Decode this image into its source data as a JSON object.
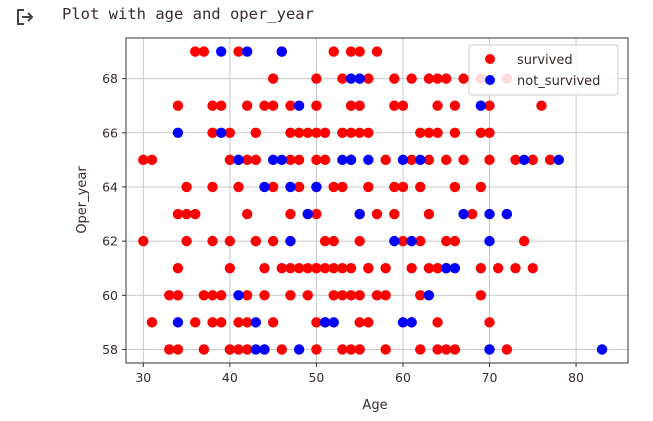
{
  "cell_output": {
    "text": "Plot with age and oper_year",
    "icon": "output-redirect-icon"
  },
  "colors": {
    "survived": "#ff0000",
    "not_survived": "#0000ff",
    "text": "#3b2a2a"
  },
  "chart_data": {
    "type": "scatter",
    "title": "",
    "xlabel": "Age",
    "ylabel": "Oper_year",
    "xlim": [
      28,
      86
    ],
    "ylim": [
      57.5,
      69.5
    ],
    "xticks": [
      30,
      40,
      50,
      60,
      70,
      80
    ],
    "yticks": [
      58,
      60,
      62,
      64,
      66,
      68
    ],
    "grid": true,
    "legend": "top-right",
    "series": [
      {
        "name": "survived",
        "color": "#ff0000",
        "points": [
          [
            36,
            69
          ],
          [
            37,
            69
          ],
          [
            41,
            69
          ],
          [
            46,
            69
          ],
          [
            52,
            69
          ],
          [
            54,
            69
          ],
          [
            55,
            69
          ],
          [
            57,
            69
          ],
          [
            45,
            68
          ],
          [
            50,
            68
          ],
          [
            53,
            68
          ],
          [
            56,
            68
          ],
          [
            59,
            68
          ],
          [
            61,
            68
          ],
          [
            63,
            68
          ],
          [
            64,
            68
          ],
          [
            65,
            68
          ],
          [
            67,
            68
          ],
          [
            69,
            68
          ],
          [
            72,
            68
          ],
          [
            34,
            67
          ],
          [
            38,
            67
          ],
          [
            39,
            67
          ],
          [
            42,
            67
          ],
          [
            44,
            67
          ],
          [
            45,
            67
          ],
          [
            47,
            67
          ],
          [
            50,
            67
          ],
          [
            54,
            67
          ],
          [
            55,
            67
          ],
          [
            59,
            67
          ],
          [
            60,
            67
          ],
          [
            64,
            67
          ],
          [
            66,
            67
          ],
          [
            70,
            67
          ],
          [
            76,
            67
          ],
          [
            38,
            66
          ],
          [
            40,
            66
          ],
          [
            43,
            66
          ],
          [
            47,
            66
          ],
          [
            48,
            66
          ],
          [
            49,
            66
          ],
          [
            50,
            66
          ],
          [
            51,
            66
          ],
          [
            53,
            66
          ],
          [
            54,
            66
          ],
          [
            55,
            66
          ],
          [
            56,
            66
          ],
          [
            62,
            66
          ],
          [
            63,
            66
          ],
          [
            64,
            66
          ],
          [
            66,
            66
          ],
          [
            69,
            66
          ],
          [
            70,
            66
          ],
          [
            30,
            65
          ],
          [
            31,
            65
          ],
          [
            40,
            65
          ],
          [
            41,
            65
          ],
          [
            42,
            65
          ],
          [
            43,
            65
          ],
          [
            47,
            65
          ],
          [
            48,
            65
          ],
          [
            50,
            65
          ],
          [
            51,
            65
          ],
          [
            54,
            65
          ],
          [
            58,
            65
          ],
          [
            61,
            65
          ],
          [
            63,
            65
          ],
          [
            65,
            65
          ],
          [
            67,
            65
          ],
          [
            70,
            65
          ],
          [
            73,
            65
          ],
          [
            75,
            65
          ],
          [
            77,
            65
          ],
          [
            35,
            64
          ],
          [
            38,
            64
          ],
          [
            41,
            64
          ],
          [
            45,
            64
          ],
          [
            48,
            64
          ],
          [
            50,
            64
          ],
          [
            52,
            64
          ],
          [
            53,
            64
          ],
          [
            56,
            64
          ],
          [
            59,
            64
          ],
          [
            60,
            64
          ],
          [
            62,
            64
          ],
          [
            66,
            64
          ],
          [
            69,
            64
          ],
          [
            34,
            63
          ],
          [
            35,
            63
          ],
          [
            36,
            63
          ],
          [
            42,
            63
          ],
          [
            47,
            63
          ],
          [
            49,
            63
          ],
          [
            50,
            63
          ],
          [
            55,
            63
          ],
          [
            57,
            63
          ],
          [
            59,
            63
          ],
          [
            63,
            63
          ],
          [
            68,
            63
          ],
          [
            72,
            63
          ],
          [
            35,
            62
          ],
          [
            38,
            62
          ],
          [
            40,
            62
          ],
          [
            43,
            62
          ],
          [
            45,
            62
          ],
          [
            47,
            62
          ],
          [
            51,
            62
          ],
          [
            52,
            62
          ],
          [
            55,
            62
          ],
          [
            60,
            62
          ],
          [
            62,
            62
          ],
          [
            65,
            62
          ],
          [
            66,
            62
          ],
          [
            74,
            62
          ],
          [
            30,
            62
          ],
          [
            43,
            62
          ],
          [
            47,
            61
          ],
          [
            50,
            61
          ],
          [
            53,
            61
          ],
          [
            56,
            61
          ],
          [
            58,
            61
          ],
          [
            61,
            61
          ],
          [
            65,
            61
          ],
          [
            69,
            61
          ],
          [
            71,
            61
          ],
          [
            75,
            61
          ],
          [
            34,
            61
          ],
          [
            40,
            61
          ],
          [
            44,
            61
          ],
          [
            46,
            61
          ],
          [
            48,
            61
          ],
          [
            49,
            61
          ],
          [
            50,
            61
          ],
          [
            51,
            61
          ],
          [
            52,
            61
          ],
          [
            54,
            61
          ],
          [
            56,
            61
          ],
          [
            63,
            61
          ],
          [
            64,
            61
          ],
          [
            73,
            61
          ],
          [
            33,
            60
          ],
          [
            34,
            60
          ],
          [
            37,
            60
          ],
          [
            38,
            60
          ],
          [
            39,
            60
          ],
          [
            42,
            60
          ],
          [
            44,
            60
          ],
          [
            47,
            60
          ],
          [
            49,
            60
          ],
          [
            52,
            60
          ],
          [
            53,
            60
          ],
          [
            54,
            60
          ],
          [
            55,
            60
          ],
          [
            57,
            60
          ],
          [
            58,
            60
          ],
          [
            62,
            60
          ],
          [
            69,
            60
          ],
          [
            31,
            59
          ],
          [
            36,
            59
          ],
          [
            38,
            59
          ],
          [
            39,
            59
          ],
          [
            41,
            59
          ],
          [
            42,
            59
          ],
          [
            45,
            59
          ],
          [
            50,
            59
          ],
          [
            51,
            59
          ],
          [
            55,
            59
          ],
          [
            56,
            59
          ],
          [
            61,
            59
          ],
          [
            64,
            59
          ],
          [
            70,
            59
          ],
          [
            33,
            58
          ],
          [
            34,
            58
          ],
          [
            37,
            58
          ],
          [
            40,
            58
          ],
          [
            41,
            58
          ],
          [
            42,
            58
          ],
          [
            44,
            58
          ],
          [
            46,
            58
          ],
          [
            50,
            58
          ],
          [
            53,
            58
          ],
          [
            54,
            58
          ],
          [
            55,
            58
          ],
          [
            58,
            58
          ],
          [
            62,
            58
          ],
          [
            64,
            58
          ],
          [
            65,
            58
          ],
          [
            66,
            58
          ],
          [
            72,
            58
          ]
        ]
      },
      {
        "name": "not_survived",
        "color": "#0000ff",
        "points": [
          [
            39,
            69
          ],
          [
            42,
            69
          ],
          [
            46,
            69
          ],
          [
            54,
            68
          ],
          [
            55,
            68
          ],
          [
            48,
            67
          ],
          [
            69,
            67
          ],
          [
            34,
            66
          ],
          [
            39,
            66
          ],
          [
            41,
            65
          ],
          [
            45,
            65
          ],
          [
            46,
            65
          ],
          [
            53,
            65
          ],
          [
            54,
            65
          ],
          [
            56,
            65
          ],
          [
            60,
            65
          ],
          [
            62,
            65
          ],
          [
            74,
            65
          ],
          [
            78,
            65
          ],
          [
            44,
            64
          ],
          [
            47,
            64
          ],
          [
            50,
            64
          ],
          [
            49,
            63
          ],
          [
            55,
            63
          ],
          [
            67,
            63
          ],
          [
            70,
            63
          ],
          [
            72,
            63
          ],
          [
            47,
            62
          ],
          [
            59,
            62
          ],
          [
            61,
            62
          ],
          [
            70,
            62
          ],
          [
            65,
            61
          ],
          [
            66,
            61
          ],
          [
            41,
            60
          ],
          [
            63,
            60
          ],
          [
            34,
            59
          ],
          [
            43,
            59
          ],
          [
            51,
            59
          ],
          [
            52,
            59
          ],
          [
            60,
            59
          ],
          [
            61,
            59
          ],
          [
            43,
            58
          ],
          [
            44,
            58
          ],
          [
            48,
            58
          ],
          [
            70,
            58
          ],
          [
            83,
            58
          ]
        ]
      }
    ]
  }
}
